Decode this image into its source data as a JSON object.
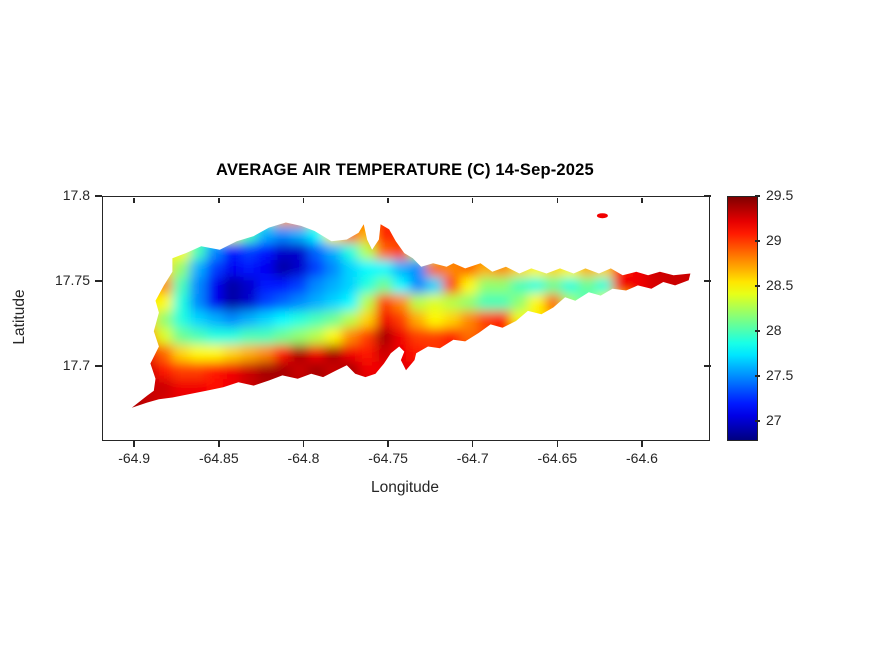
{
  "chart_data": {
    "type": "heatmap",
    "title": "AVERAGE AIR TEMPERATURE (C) 14-Sep-2025",
    "xlabel": "Longitude",
    "ylabel": "Latitude",
    "units": "C",
    "xlim": [
      -64.919,
      -64.561
    ],
    "ylim": [
      17.657,
      17.8
    ],
    "xticks": [
      -64.9,
      -64.85,
      -64.8,
      -64.75,
      -64.7,
      -64.65,
      -64.6
    ],
    "xtick_labels": [
      "-64.9",
      "-64.85",
      "-64.8",
      "-64.75",
      "-64.7",
      "-64.65",
      "-64.6"
    ],
    "yticks": [
      17.7,
      17.75,
      17.8
    ],
    "ytick_labels": [
      "17.7",
      "17.75",
      "17.8"
    ],
    "grid_lines": false,
    "colorbar": {
      "position": "right",
      "colormap": "jet",
      "min": 26.8,
      "max": 29.5,
      "ticks": [
        27,
        27.5,
        28,
        28.5,
        29,
        29.5
      ],
      "tick_labels": [
        "27",
        "27.5",
        "28",
        "28.5",
        "29",
        "29.5"
      ]
    },
    "grid": {
      "lon_start": -64.91,
      "lon_step": 0.01,
      "lat_start": 17.795,
      "lat_step": -0.01,
      "ncols": 35,
      "nrows": 13,
      "values": [
        [
          null,
          null,
          null,
          null,
          null,
          null,
          null,
          null,
          null,
          null,
          null,
          null,
          null,
          null,
          null,
          null,
          null,
          null,
          null,
          null,
          null,
          null,
          null,
          null,
          null,
          null,
          null,
          null,
          null,
          null,
          null,
          null,
          null,
          null,
          null
        ],
        [
          null,
          null,
          null,
          null,
          null,
          null,
          null,
          null,
          null,
          null,
          28.7,
          28.8,
          null,
          null,
          null,
          null,
          29.0,
          null,
          null,
          null,
          null,
          null,
          null,
          null,
          null,
          null,
          null,
          null,
          null,
          null,
          null,
          null,
          null,
          null,
          null
        ],
        [
          null,
          null,
          null,
          null,
          null,
          null,
          null,
          28.4,
          28.0,
          27.6,
          27.5,
          27.6,
          27.8,
          28.5,
          28.9,
          null,
          29.1,
          null,
          null,
          null,
          null,
          null,
          null,
          null,
          null,
          null,
          null,
          null,
          null,
          null,
          null,
          null,
          null,
          null,
          null
        ],
        [
          null,
          null,
          null,
          null,
          28.5,
          28.0,
          27.5,
          27.2,
          27.3,
          27.2,
          27.0,
          27.0,
          27.4,
          27.6,
          27.9,
          28.3,
          28.9,
          29.0,
          null,
          null,
          null,
          null,
          null,
          null,
          null,
          null,
          null,
          null,
          null,
          null,
          null,
          null,
          null,
          null,
          null
        ],
        [
          null,
          null,
          null,
          28.6,
          28.2,
          27.6,
          27.3,
          27.1,
          27.2,
          27.1,
          26.9,
          27.0,
          27.3,
          27.5,
          27.7,
          27.8,
          27.8,
          27.6,
          27.5,
          28.9,
          28.8,
          28.9,
          28.7,
          28.8,
          28.6,
          28.5,
          28.6,
          28.5,
          28.7,
          28.6,
          29.1,
          29.2,
          29.3,
          29.3,
          29.3
        ],
        [
          null,
          null,
          null,
          28.8,
          28.0,
          27.5,
          27.1,
          26.9,
          27.0,
          27.2,
          27.2,
          27.3,
          27.5,
          27.6,
          27.7,
          27.9,
          28.1,
          27.8,
          27.5,
          27.7,
          29.0,
          28.5,
          28.2,
          28.2,
          28.0,
          27.9,
          28.1,
          27.9,
          28.1,
          27.9,
          29.2,
          null,
          null,
          null,
          null
        ],
        [
          null,
          null,
          null,
          28.5,
          27.9,
          27.5,
          27.1,
          26.9,
          27.0,
          27.3,
          27.4,
          27.5,
          27.6,
          27.7,
          27.8,
          28.3,
          29.0,
          28.8,
          28.3,
          28.4,
          28.3,
          28.2,
          28.0,
          28.0,
          28.2,
          28.5,
          28.9,
          null,
          null,
          null,
          null,
          null,
          null,
          null,
          null
        ],
        [
          null,
          null,
          28.6,
          28.2,
          27.9,
          27.7,
          27.6,
          27.5,
          27.6,
          27.7,
          27.8,
          27.9,
          28.0,
          28.1,
          28.3,
          28.6,
          29.2,
          29.0,
          28.7,
          28.5,
          28.6,
          28.8,
          29.0,
          29.1,
          null,
          null,
          null,
          null,
          null,
          null,
          null,
          null,
          null,
          null,
          null
        ],
        [
          null,
          null,
          28.8,
          28.4,
          28.1,
          28.0,
          27.9,
          27.9,
          28.0,
          28.0,
          28.1,
          28.2,
          28.3,
          28.5,
          28.8,
          29.0,
          29.4,
          29.2,
          29.0,
          29.0,
          29.1,
          null,
          null,
          null,
          null,
          null,
          null,
          null,
          null,
          null,
          null,
          null,
          null,
          null,
          null
        ],
        [
          null,
          null,
          29.2,
          28.9,
          28.6,
          28.5,
          28.5,
          28.6,
          28.7,
          28.8,
          29.1,
          29.4,
          29.2,
          29.4,
          29.2,
          29.1,
          29.3,
          29.2,
          null,
          null,
          null,
          null,
          null,
          null,
          null,
          null,
          null,
          null,
          null,
          null,
          null,
          null,
          null,
          null,
          null
        ],
        [
          null,
          null,
          29.3,
          29.1,
          29.0,
          29.0,
          29.1,
          29.2,
          29.3,
          29.4,
          29.4,
          29.3,
          29.4,
          29.3,
          29.4,
          29.2,
          null,
          null,
          null,
          null,
          null,
          null,
          null,
          null,
          null,
          null,
          null,
          null,
          null,
          null,
          null,
          null,
          null,
          null,
          null
        ],
        [
          null,
          29.3,
          29.3,
          29.3,
          29.2,
          29.2,
          null,
          null,
          null,
          null,
          null,
          null,
          null,
          null,
          null,
          null,
          null,
          null,
          null,
          null,
          null,
          null,
          null,
          null,
          null,
          null,
          null,
          null,
          null,
          null,
          null,
          null,
          null,
          null,
          null
        ],
        [
          null,
          29.4,
          null,
          null,
          null,
          null,
          null,
          null,
          null,
          null,
          null,
          null,
          null,
          null,
          null,
          null,
          null,
          null,
          null,
          null,
          null,
          null,
          null,
          null,
          null,
          null,
          null,
          null,
          null,
          null,
          null,
          null,
          null,
          null,
          null
        ]
      ]
    },
    "island_outline": [
      [
        -64.902,
        17.676
      ],
      [
        -64.893,
        17.683
      ],
      [
        -64.889,
        17.686
      ],
      [
        -64.888,
        17.693
      ],
      [
        -64.891,
        17.702
      ],
      [
        -64.886,
        17.712
      ],
      [
        -64.889,
        17.721
      ],
      [
        -64.886,
        17.732
      ],
      [
        -64.888,
        17.739
      ],
      [
        -64.883,
        17.748
      ],
      [
        -64.878,
        17.756
      ],
      [
        -64.878,
        17.764
      ],
      [
        -64.87,
        17.767
      ],
      [
        -64.861,
        17.771
      ],
      [
        -64.85,
        17.769
      ],
      [
        -64.84,
        17.774
      ],
      [
        -64.83,
        17.777
      ],
      [
        -64.821,
        17.782
      ],
      [
        -64.811,
        17.785
      ],
      [
        -64.802,
        17.783
      ],
      [
        -64.794,
        17.78
      ],
      [
        -64.784,
        17.774
      ],
      [
        -64.775,
        17.775
      ],
      [
        -64.768,
        17.779
      ],
      [
        -64.765,
        17.784
      ],
      [
        -64.763,
        17.775
      ],
      [
        -64.76,
        17.769
      ],
      [
        -64.756,
        17.775
      ],
      [
        -64.755,
        17.784
      ],
      [
        -64.75,
        17.781
      ],
      [
        -64.746,
        17.774
      ],
      [
        -64.741,
        17.767
      ],
      [
        -64.736,
        17.764
      ],
      [
        -64.731,
        17.759
      ],
      [
        -64.724,
        17.761
      ],
      [
        -64.716,
        17.759
      ],
      [
        -64.712,
        17.761
      ],
      [
        -64.705,
        17.758
      ],
      [
        -64.696,
        17.761
      ],
      [
        -64.689,
        17.756
      ],
      [
        -64.681,
        17.759
      ],
      [
        -64.673,
        17.755
      ],
      [
        -64.666,
        17.758
      ],
      [
        -64.657,
        17.755
      ],
      [
        -64.649,
        17.758
      ],
      [
        -64.641,
        17.755
      ],
      [
        -64.634,
        17.758
      ],
      [
        -64.626,
        17.755
      ],
      [
        -64.619,
        17.758
      ],
      [
        -64.612,
        17.754
      ],
      [
        -64.604,
        17.756
      ],
      [
        -64.597,
        17.754
      ],
      [
        -64.59,
        17.756
      ],
      [
        -64.582,
        17.754
      ],
      [
        -64.572,
        17.755
      ],
      [
        -64.573,
        17.751
      ],
      [
        -64.581,
        17.748
      ],
      [
        -64.588,
        17.75
      ],
      [
        -64.595,
        17.746
      ],
      [
        -64.603,
        17.748
      ],
      [
        -64.61,
        17.745
      ],
      [
        -64.618,
        17.746
      ],
      [
        -64.625,
        17.742
      ],
      [
        -64.632,
        17.744
      ],
      [
        -64.64,
        17.739
      ],
      [
        -64.646,
        17.741
      ],
      [
        -64.653,
        17.735
      ],
      [
        -64.66,
        17.731
      ],
      [
        -64.668,
        17.733
      ],
      [
        -64.675,
        17.727
      ],
      [
        -64.683,
        17.723
      ],
      [
        -64.69,
        17.725
      ],
      [
        -64.697,
        17.72
      ],
      [
        -64.705,
        17.715
      ],
      [
        -64.712,
        17.716
      ],
      [
        -64.72,
        17.711
      ],
      [
        -64.727,
        17.712
      ],
      [
        -64.734,
        17.708
      ],
      [
        -64.735,
        17.704
      ],
      [
        -64.74,
        17.698
      ],
      [
        -64.743,
        17.704
      ],
      [
        -64.741,
        17.709
      ],
      [
        -64.744,
        17.712
      ],
      [
        -64.749,
        17.708
      ],
      [
        -64.753,
        17.702
      ],
      [
        -64.758,
        17.696
      ],
      [
        -64.764,
        17.694
      ],
      [
        -64.77,
        17.696
      ],
      [
        -64.775,
        17.701
      ],
      [
        -64.781,
        17.698
      ],
      [
        -64.789,
        17.694
      ],
      [
        -64.796,
        17.696
      ],
      [
        -64.804,
        17.693
      ],
      [
        -64.813,
        17.695
      ],
      [
        -64.821,
        17.692
      ],
      [
        -64.83,
        17.689
      ],
      [
        -64.839,
        17.691
      ],
      [
        -64.848,
        17.688
      ],
      [
        -64.858,
        17.686
      ],
      [
        -64.868,
        17.684
      ],
      [
        -64.878,
        17.682
      ],
      [
        -64.886,
        17.681
      ],
      [
        -64.893,
        17.679
      ]
    ],
    "buck_island": {
      "lon": -64.624,
      "lat": 17.789,
      "temp": 29.2
    },
    "colors": {
      "background": "#ffffff",
      "text": "#262626",
      "title_text": "#000000",
      "axis_line": "#262626"
    }
  }
}
